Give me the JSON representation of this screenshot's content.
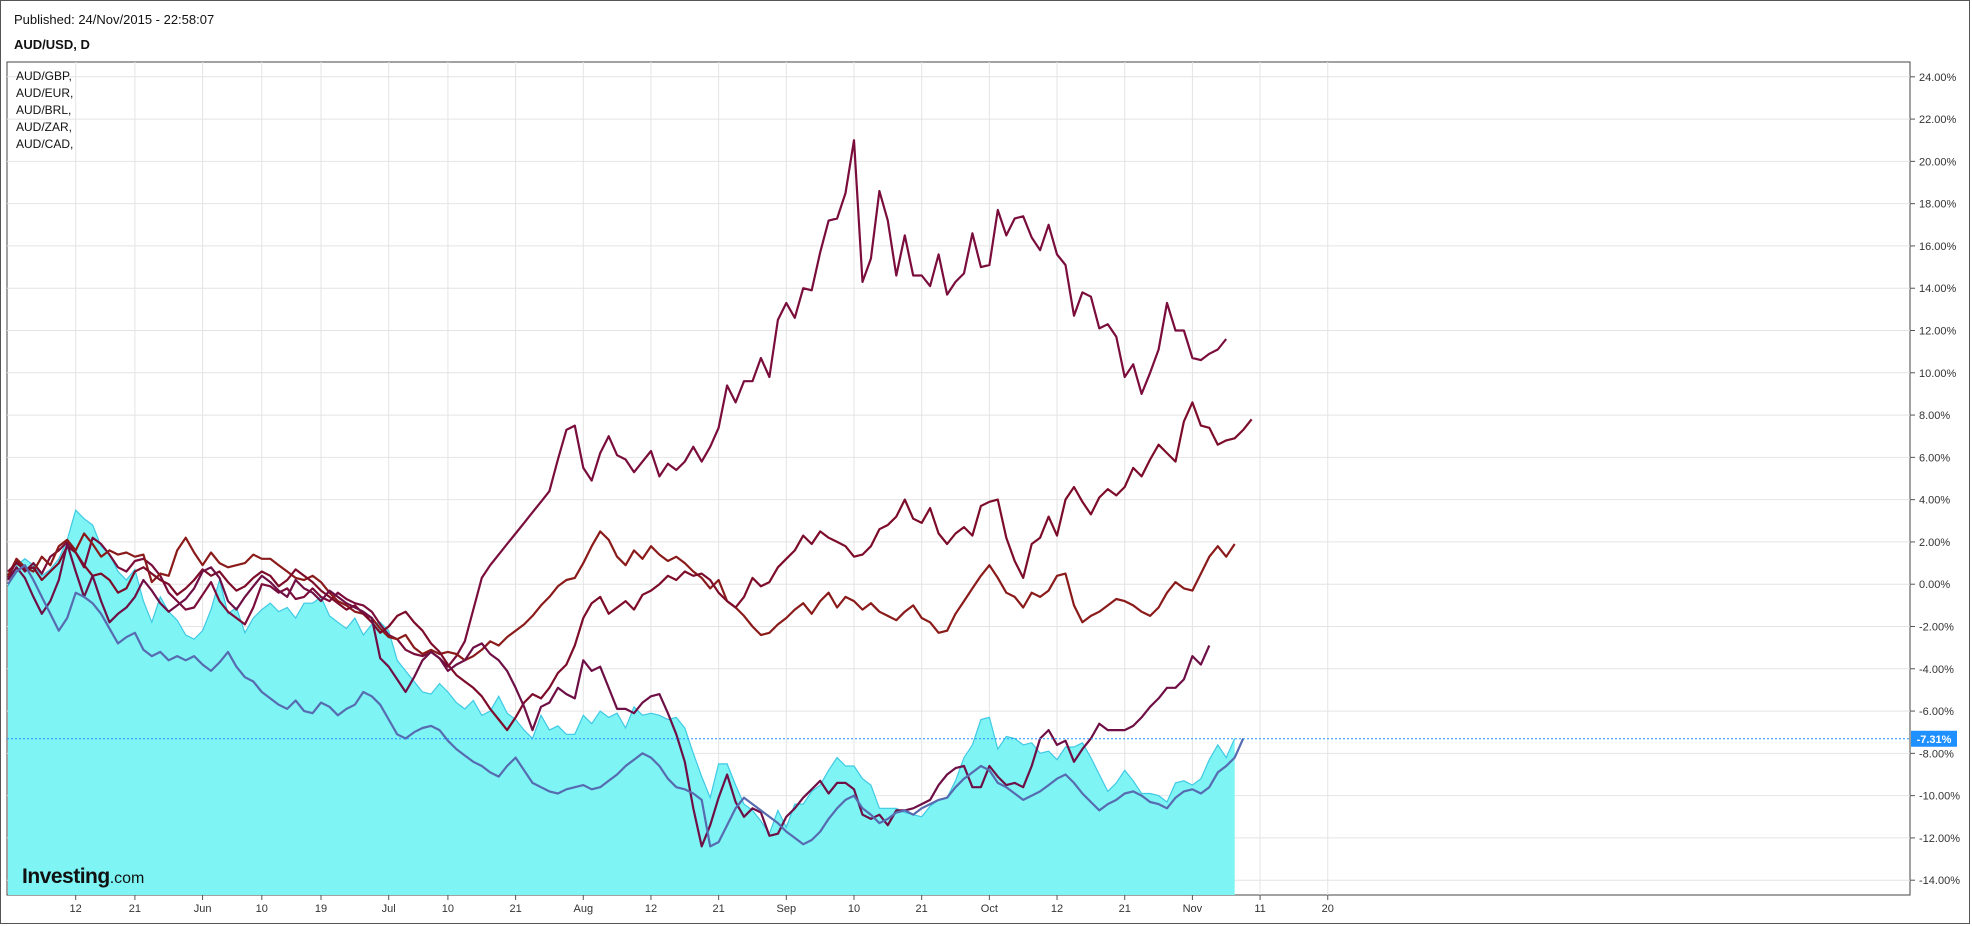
{
  "header": {
    "published": "Published: 24/Nov/2015 - 22:58:07",
    "symbol": "AUD/USD, D"
  },
  "logo": {
    "brand": "Investing",
    "suffix": ".com"
  },
  "chart_data": {
    "type": "line",
    "title": "AUD/USD, D",
    "legend_position": "top-left",
    "grid": true,
    "y_unit": "%",
    "ylim": [
      -14.7,
      24.7
    ],
    "yticks": [
      24,
      22,
      20,
      18,
      16,
      14,
      12,
      10,
      8,
      6,
      4,
      2,
      0,
      -2,
      -4,
      -6,
      -8,
      -10,
      -12,
      -14
    ],
    "ytick_labels": [
      "24.00%",
      "22.00%",
      "20.00%",
      "18.00%",
      "16.00%",
      "14.00%",
      "12.00%",
      "10.00%",
      "8.00%",
      "6.00%",
      "4.00%",
      "2.00%",
      "0.00%",
      "-2.00%",
      "-4.00%",
      "-6.00%",
      "-8.00%",
      "-10.00%",
      "-12.00%",
      "-14.00%"
    ],
    "xtick_labels": [
      "12",
      "21",
      "Jun",
      "10",
      "19",
      "Jul",
      "10",
      "21",
      "Aug",
      "12",
      "21",
      "Sep",
      "10",
      "21",
      "Oct",
      "12",
      "21",
      "Nov",
      "11",
      "20"
    ],
    "xtick_index": [
      8,
      15,
      23,
      30,
      37,
      45,
      52,
      60,
      68,
      76,
      84,
      92,
      100,
      108,
      116,
      124,
      132,
      140,
      148,
      156
    ],
    "last_value_label": "-7.31%",
    "last_value": -7.31,
    "colors": {
      "area_fill": "#7ef4f4",
      "area_line": "#3fc9e4",
      "area_series": "#3d6f9f",
      "brl": "#7a0d3b",
      "eur": "#8b1a1a",
      "gbp": "#7d0c2a",
      "zar": "#6e0f46",
      "cad": "#566bb0",
      "current_line": "#1e90ff",
      "current_badge": "#1e90ff"
    },
    "series": [
      {
        "name": "AUD/USD, D",
        "style": "area",
        "values": [
          -0.1,
          0.9,
          1.2,
          0.9,
          0.4,
          0.7,
          1.2,
          2.1,
          3.5,
          3.1,
          2.8,
          1.8,
          1.4,
          0.6,
          0.2,
          0.7,
          -0.8,
          -1.8,
          -0.6,
          -1.3,
          -1.7,
          -2.4,
          -2.6,
          -2.2,
          -1.2,
          0.2,
          -1.4,
          -1.1,
          -2.3,
          -1.6,
          -1.2,
          -0.9,
          -1.3,
          -1.1,
          -1.6,
          -0.9,
          -0.9,
          -0.6,
          -1.5,
          -1.8,
          -2.1,
          -1.6,
          -2.4,
          -1.9,
          -1.8,
          -2.2,
          -3.6,
          -4.1,
          -4.6,
          -5.1,
          -5.2,
          -4.7,
          -5.1,
          -5.6,
          -5.9,
          -5.5,
          -6.2,
          -6.0,
          -5.3,
          -6.1,
          -6.4,
          -6.9,
          -7.3,
          -6.2,
          -6.9,
          -6.7,
          -7.1,
          -7.1,
          -6.2,
          -6.6,
          -6.0,
          -6.3,
          -6.1,
          -6.8,
          -5.8,
          -6.2,
          -6.1,
          -6.2,
          -6.4,
          -6.3,
          -6.8,
          -8.0,
          -9.1,
          -10.1,
          -8.5,
          -8.5,
          -9.5,
          -10.4,
          -10.7,
          -11.2,
          -11.8,
          -10.7,
          -11.5,
          -10.4,
          -10.4,
          -9.8,
          -9.5,
          -8.8,
          -8.2,
          -8.6,
          -8.6,
          -9.2,
          -9.5,
          -10.6,
          -10.6,
          -10.6,
          -10.8,
          -10.9,
          -11.0,
          -10.5,
          -10.2,
          -10.1,
          -9.3,
          -8.2,
          -7.6,
          -6.4,
          -6.3,
          -7.8,
          -7.2,
          -7.3,
          -7.6,
          -7.5,
          -8.0,
          -7.9,
          -8.3,
          -7.7,
          -7.7,
          -7.5,
          -8.2,
          -9.0,
          -9.8,
          -9.4,
          -8.8,
          -9.3,
          -9.9,
          -9.9,
          -10.0,
          -10.3,
          -9.4,
          -9.3,
          -9.5,
          -9.2,
          -8.3,
          -7.6,
          -8.2,
          -7.3
        ]
      },
      {
        "name": "AUD/BRL,",
        "style": "line",
        "values": [
          0.3,
          1.1,
          0.6,
          1.0,
          0.5,
          1.3,
          1.6,
          2.0,
          1.5,
          0.8,
          2.2,
          1.9,
          1.4,
          0.8,
          0.6,
          1.1,
          1.2,
          0.9,
          0.4,
          -0.4,
          -0.8,
          -1.2,
          -1.1,
          -0.5,
          0.1,
          -0.8,
          -1.3,
          -1.6,
          -1.9,
          -1.1,
          0.0,
          -0.1,
          -0.4,
          -0.2,
          -0.7,
          -0.6,
          -0.2,
          -0.6,
          -0.8,
          -0.4,
          -0.7,
          -0.9,
          -1.0,
          -1.3,
          -1.9,
          -2.4,
          -2.6,
          -3.1,
          -3.3,
          -3.4,
          -3.2,
          -3.5,
          -3.9,
          -3.4,
          -2.7,
          -1.2,
          0.3,
          0.9,
          1.4,
          1.9,
          2.4,
          2.9,
          3.4,
          3.9,
          4.4,
          5.9,
          7.3,
          7.5,
          5.5,
          4.9,
          6.2,
          7.0,
          6.1,
          5.9,
          5.3,
          5.8,
          6.3,
          5.1,
          5.7,
          5.4,
          5.8,
          6.5,
          5.8,
          6.5,
          7.4,
          9.4,
          8.6,
          9.6,
          9.6,
          10.7,
          9.8,
          12.5,
          13.3,
          12.6,
          14.0,
          13.9,
          15.7,
          17.2,
          17.3,
          18.5,
          21.0,
          14.3,
          15.4,
          18.6,
          17.2,
          14.6,
          16.5,
          14.6,
          14.6,
          14.1,
          15.6,
          13.7,
          14.3,
          14.7,
          16.6,
          15.0,
          15.1,
          17.7,
          16.5,
          17.3,
          17.4,
          16.4,
          15.8,
          17.0,
          15.6,
          15.1,
          12.7,
          13.8,
          13.6,
          12.1,
          12.3,
          11.7,
          9.8,
          10.4,
          9.0,
          10.0,
          11.1,
          13.3,
          12.0,
          12.0,
          10.7,
          10.6,
          10.9,
          11.1,
          11.6
        ]
      },
      {
        "name": "AUD/EUR,",
        "style": "line",
        "values": [
          0.4,
          1.2,
          0.8,
          0.6,
          1.3,
          0.9,
          1.8,
          2.1,
          1.6,
          2.4,
          1.9,
          1.3,
          1.6,
          1.4,
          1.5,
          1.3,
          1.4,
          0.1,
          0.5,
          0.4,
          1.6,
          2.2,
          1.5,
          0.9,
          1.5,
          1.0,
          0.8,
          0.9,
          1.0,
          1.4,
          1.2,
          1.2,
          0.9,
          0.6,
          0.3,
          0.2,
          0.4,
          0.1,
          -0.4,
          -0.8,
          -1.0,
          -1.3,
          -1.4,
          -1.6,
          -2.1,
          -2.5,
          -2.6,
          -2.4,
          -3.0,
          -3.3,
          -3.1,
          -3.3,
          -3.2,
          -3.3,
          -3.6,
          -3.4,
          -3.1,
          -2.7,
          -2.9,
          -2.5,
          -2.2,
          -1.9,
          -1.5,
          -1.0,
          -0.6,
          -0.1,
          0.2,
          0.3,
          1.0,
          1.8,
          2.5,
          2.1,
          1.3,
          0.9,
          1.6,
          1.2,
          1.8,
          1.4,
          1.1,
          1.3,
          1.0,
          0.6,
          0.3,
          -0.2,
          0.2,
          -0.8,
          -1.1,
          -1.5,
          -2.0,
          -2.4,
          -2.3,
          -1.9,
          -1.6,
          -1.2,
          -0.9,
          -1.4,
          -0.8,
          -0.4,
          -1.1,
          -0.6,
          -0.8,
          -1.2,
          -0.9,
          -1.3,
          -1.5,
          -1.7,
          -1.3,
          -1.0,
          -1.6,
          -1.8,
          -2.3,
          -2.2,
          -1.4,
          -0.8,
          -0.2,
          0.4,
          0.9,
          0.3,
          -0.4,
          -0.6,
          -1.1,
          -0.4,
          -0.6,
          -0.3,
          0.4,
          0.5,
          -1.0,
          -1.8,
          -1.5,
          -1.3,
          -1.0,
          -0.7,
          -0.8,
          -1.0,
          -1.3,
          -1.5,
          -1.1,
          -0.4,
          0.1,
          -0.2,
          -0.3,
          0.5,
          1.3,
          1.8,
          1.3,
          1.9
        ]
      },
      {
        "name": "AUD/GBP,",
        "style": "line",
        "values": [
          0.6,
          1.0,
          0.7,
          0.8,
          0.2,
          0.6,
          1.0,
          1.8,
          1.5,
          0.9,
          0.4,
          0.5,
          0.2,
          -0.4,
          -0.2,
          0.6,
          0.8,
          0.5,
          0.2,
          0.0,
          -0.5,
          -0.2,
          0.2,
          0.7,
          0.4,
          0.6,
          0.1,
          -0.3,
          -0.1,
          0.3,
          0.6,
          0.4,
          -0.1,
          0.2,
          0.7,
          0.4,
          0.1,
          -0.3,
          -0.6,
          -0.9,
          -1.2,
          -1.0,
          -1.4,
          -1.8,
          -2.3,
          -2.0,
          -1.5,
          -1.3,
          -1.8,
          -2.2,
          -2.8,
          -3.2,
          -3.8,
          -4.3,
          -4.6,
          -4.9,
          -5.3,
          -5.9,
          -6.4,
          -6.9,
          -6.3,
          -5.6,
          -5.2,
          -5.4,
          -4.9,
          -4.2,
          -3.8,
          -2.9,
          -1.6,
          -0.9,
          -0.6,
          -1.4,
          -1.1,
          -0.8,
          -1.2,
          -0.5,
          -0.3,
          0.0,
          0.4,
          0.2,
          0.6,
          0.4,
          0.5,
          0.2,
          -0.4,
          -0.8,
          -1.1,
          -0.6,
          0.3,
          -0.1,
          0.1,
          0.8,
          1.2,
          1.6,
          2.3,
          1.9,
          2.5,
          2.2,
          2.0,
          1.8,
          1.3,
          1.4,
          1.8,
          2.6,
          2.8,
          3.2,
          4.0,
          3.1,
          2.9,
          3.6,
          2.4,
          1.9,
          2.4,
          2.7,
          2.3,
          3.7,
          3.9,
          4.0,
          2.2,
          1.1,
          0.3,
          1.9,
          2.2,
          3.2,
          2.3,
          4.0,
          4.6,
          3.9,
          3.3,
          4.1,
          4.5,
          4.2,
          4.6,
          5.5,
          5.1,
          5.9,
          6.6,
          6.2,
          5.8,
          7.7,
          8.6,
          7.5,
          7.4,
          6.6,
          6.8,
          6.9,
          7.3,
          7.8
        ]
      },
      {
        "name": "AUD/ZAR,",
        "style": "line",
        "values": [
          0.2,
          0.8,
          0.3,
          -0.6,
          -1.4,
          -0.8,
          0.2,
          1.9,
          0.6,
          -0.6,
          0.4,
          -0.8,
          -1.8,
          -1.4,
          -1.1,
          -0.6,
          0.2,
          -0.3,
          -0.9,
          -1.3,
          -1.0,
          -0.7,
          -0.2,
          0.6,
          0.8,
          0.3,
          -0.8,
          -1.2,
          -0.6,
          -0.1,
          0.4,
          0.1,
          -0.3,
          -0.6,
          0.2,
          -0.2,
          -0.4,
          -0.8,
          -0.3,
          -0.6,
          -0.9,
          -1.1,
          -1.3,
          -1.6,
          -3.5,
          -3.9,
          -4.5,
          -5.1,
          -4.4,
          -3.6,
          -3.2,
          -3.5,
          -4.1,
          -3.8,
          -3.6,
          -3.0,
          -2.8,
          -3.3,
          -3.6,
          -4.1,
          -4.9,
          -5.8,
          -6.9,
          -5.8,
          -5.6,
          -4.9,
          -5.2,
          -5.4,
          -3.6,
          -4.1,
          -3.9,
          -4.9,
          -5.9,
          -5.9,
          -6.1,
          -5.6,
          -5.3,
          -5.2,
          -6.1,
          -7.1,
          -8.4,
          -10.6,
          -12.4,
          -11.4,
          -10.1,
          -9.0,
          -10.3,
          -11.0,
          -10.6,
          -10.8,
          -11.9,
          -11.8,
          -11.0,
          -10.6,
          -10.1,
          -9.7,
          -9.3,
          -9.9,
          -9.4,
          -9.4,
          -9.7,
          -10.9,
          -11.1,
          -10.9,
          -11.4,
          -10.7,
          -10.7,
          -10.6,
          -10.4,
          -10.2,
          -9.5,
          -9.0,
          -8.7,
          -8.6,
          -9.6,
          -9.6,
          -8.6,
          -9.1,
          -9.5,
          -9.4,
          -9.6,
          -8.6,
          -7.3,
          -6.9,
          -7.6,
          -7.4,
          -8.4,
          -7.8,
          -7.3,
          -6.6,
          -6.9,
          -6.9,
          -6.9,
          -6.7,
          -6.3,
          -5.8,
          -5.4,
          -4.9,
          -4.9,
          -4.5,
          -3.4,
          -3.8,
          -2.9
        ]
      },
      {
        "name": "AUD/CAD,",
        "style": "line",
        "values": [
          0.0,
          0.6,
          0.9,
          0.2,
          -0.6,
          -1.4,
          -2.2,
          -1.6,
          -0.4,
          -0.6,
          -0.9,
          -1.4,
          -2.1,
          -2.8,
          -2.5,
          -2.3,
          -3.1,
          -3.4,
          -3.2,
          -3.6,
          -3.4,
          -3.6,
          -3.4,
          -3.8,
          -4.1,
          -3.7,
          -3.2,
          -3.9,
          -4.4,
          -4.6,
          -5.1,
          -5.4,
          -5.7,
          -5.9,
          -5.5,
          -6.0,
          -6.1,
          -5.6,
          -5.8,
          -6.2,
          -5.9,
          -5.7,
          -5.1,
          -5.3,
          -5.7,
          -6.4,
          -7.1,
          -7.3,
          -7.0,
          -6.8,
          -6.7,
          -6.9,
          -7.4,
          -7.8,
          -8.1,
          -8.4,
          -8.6,
          -8.9,
          -9.1,
          -8.6,
          -8.2,
          -8.8,
          -9.4,
          -9.6,
          -9.8,
          -9.9,
          -9.7,
          -9.6,
          -9.5,
          -9.7,
          -9.6,
          -9.3,
          -9.0,
          -8.6,
          -8.3,
          -8.0,
          -8.2,
          -8.6,
          -9.2,
          -9.6,
          -9.7,
          -9.9,
          -10.2,
          -12.4,
          -12.2,
          -11.4,
          -10.6,
          -10.1,
          -10.4,
          -10.7,
          -11.0,
          -11.3,
          -11.7,
          -12.0,
          -12.3,
          -12.1,
          -11.7,
          -11.1,
          -10.6,
          -10.2,
          -10.0,
          -10.6,
          -10.9,
          -11.3,
          -11.1,
          -10.8,
          -10.7,
          -10.9,
          -10.6,
          -10.4,
          -10.2,
          -10.1,
          -9.6,
          -9.2,
          -8.9,
          -8.6,
          -8.8,
          -9.4,
          -9.6,
          -9.9,
          -10.2,
          -10.0,
          -9.8,
          -9.5,
          -9.2,
          -9.0,
          -9.4,
          -9.9,
          -10.3,
          -10.7,
          -10.4,
          -10.2,
          -9.9,
          -9.8,
          -10.0,
          -10.3,
          -10.4,
          -10.6,
          -10.1,
          -9.8,
          -9.7,
          -9.9,
          -9.6,
          -8.9,
          -8.6,
          -8.2,
          -7.3
        ]
      }
    ]
  }
}
